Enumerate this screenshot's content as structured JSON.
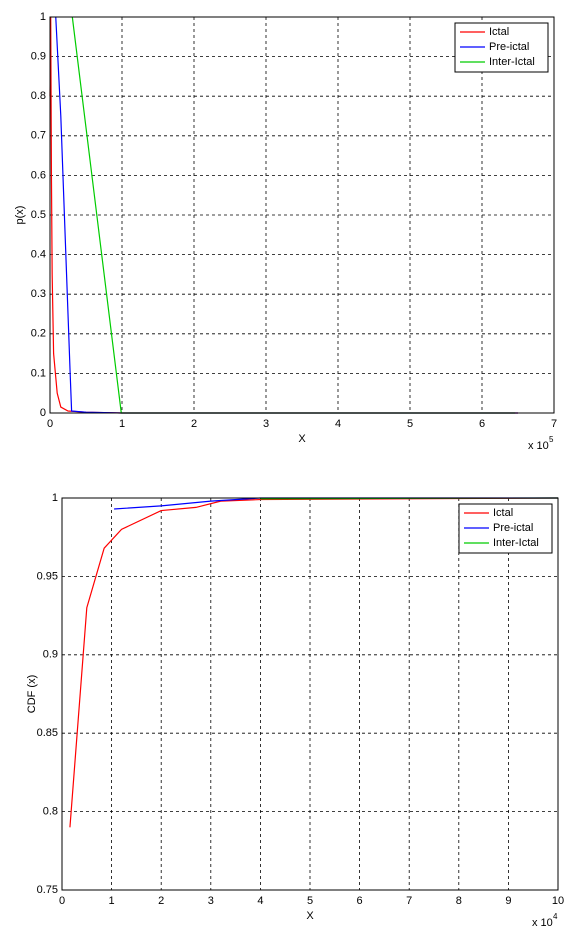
{
  "chart_data": [
    {
      "type": "line",
      "x_label": "X",
      "y_label": "p(x)",
      "x_scale_label": "x 10",
      "x_scale_exponent": "5",
      "xlim": [
        0,
        7
      ],
      "xticks": [
        0,
        1,
        2,
        3,
        4,
        5,
        6,
        7
      ],
      "ylim": [
        0,
        1
      ],
      "yticks": [
        0,
        0.1,
        0.2,
        0.3,
        0.4,
        0.5,
        0.6,
        0.7,
        0.8,
        0.9,
        1
      ],
      "grid": true,
      "legend": "top-right",
      "series": [
        {
          "name": "Ictal",
          "color": "#ff0000",
          "x": [
            0,
            0.01,
            0.02,
            0.03,
            0.05,
            0.1,
            0.15,
            0.25,
            0.5,
            1,
            2,
            3,
            4,
            5,
            6,
            6.5
          ],
          "values": [
            0.8,
            1,
            0.6,
            0.35,
            0.15,
            0.05,
            0.015,
            0.005,
            0.002,
            0,
            0,
            0,
            0,
            0,
            0,
            0
          ]
        },
        {
          "name": "Pre-ictal",
          "color": "#0000ff",
          "x": [
            0.08,
            0.15,
            0.2,
            0.25,
            0.28,
            0.3,
            0.5,
            1,
            2,
            4,
            6.5
          ],
          "values": [
            1,
            0.75,
            0.5,
            0.25,
            0.1,
            0.005,
            0.002,
            0,
            0,
            0,
            0
          ]
        },
        {
          "name": "Inter-Ictal",
          "color": "#00cc00",
          "x": [
            0.31,
            0.99,
            6.46
          ],
          "values": [
            1,
            0,
            0
          ]
        }
      ]
    },
    {
      "type": "line",
      "x_label": "X",
      "y_label": "CDF (x)",
      "x_scale_label": "x 10",
      "x_scale_exponent": "4",
      "xlim": [
        0,
        10
      ],
      "xticks": [
        0,
        1,
        2,
        3,
        4,
        5,
        6,
        7,
        8,
        9,
        10
      ],
      "ylim": [
        0.75,
        1
      ],
      "yticks": [
        0.75,
        0.8,
        0.85,
        0.9,
        0.95,
        1
      ],
      "grid": true,
      "legend": "top-right",
      "series": [
        {
          "name": "Ictal",
          "color": "#ff0000",
          "x": [
            0.16,
            0.5,
            0.85,
            1.2,
            2,
            2.7,
            3.2,
            4,
            10
          ],
          "values": [
            0.79,
            0.93,
            0.968,
            0.98,
            0.992,
            0.994,
            0.998,
            0.999,
            1
          ]
        },
        {
          "name": "Pre-ictal",
          "color": "#0000ff",
          "x": [
            1.05,
            2,
            3,
            4,
            10
          ],
          "values": [
            0.993,
            0.995,
            0.998,
            1,
            1
          ]
        },
        {
          "name": "Inter-Ictal",
          "color": "#00cc00",
          "x": [
            4,
            6,
            8,
            10
          ],
          "values": [
            0.9995,
            0.9997,
            0.9999,
            1
          ]
        }
      ]
    }
  ]
}
